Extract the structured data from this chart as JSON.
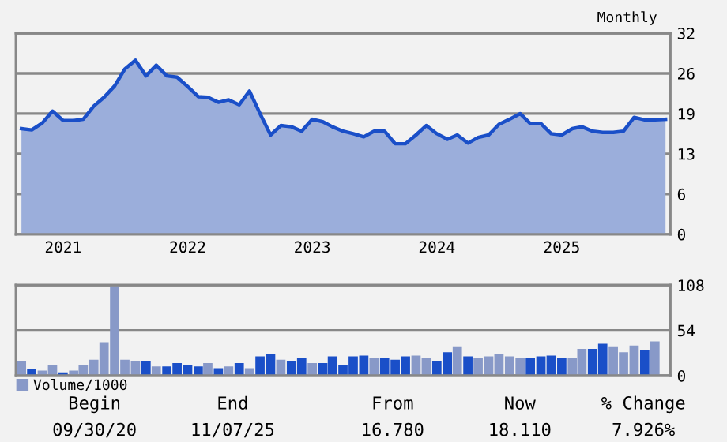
{
  "chart_data": [
    {
      "type": "area",
      "annotations": [
        "Monthly"
      ],
      "grid": "y",
      "legend": false,
      "x": [
        "2020-09",
        "2020-10",
        "2020-11",
        "2020-12",
        "2021-01",
        "2021-02",
        "2021-03",
        "2021-04",
        "2021-05",
        "2021-06",
        "2021-07",
        "2021-08",
        "2021-09",
        "2021-10",
        "2021-11",
        "2021-12",
        "2022-01",
        "2022-02",
        "2022-03",
        "2022-04",
        "2022-05",
        "2022-06",
        "2022-07",
        "2022-08",
        "2022-09",
        "2022-10",
        "2022-11",
        "2022-12",
        "2023-01",
        "2023-02",
        "2023-03",
        "2023-04",
        "2023-05",
        "2023-06",
        "2023-07",
        "2023-08",
        "2023-09",
        "2023-10",
        "2023-11",
        "2023-12",
        "2024-01",
        "2024-02",
        "2024-03",
        "2024-04",
        "2024-05",
        "2024-06",
        "2024-07",
        "2024-08",
        "2024-09",
        "2024-10",
        "2024-11",
        "2024-12",
        "2025-01",
        "2025-02",
        "2025-03",
        "2025-04",
        "2025-05",
        "2025-06",
        "2025-07",
        "2025-08",
        "2025-09",
        "2025-10",
        "2025-11"
      ],
      "series": [
        {
          "color": "#1a4fc8",
          "values": [
            16.8,
            16.6,
            17.7,
            19.6,
            18.1,
            18.1,
            18.3,
            20.4,
            21.8,
            23.6,
            26.3,
            27.7,
            25.2,
            26.9,
            25.2,
            25.0,
            23.5,
            21.9,
            21.8,
            21.0,
            21.4,
            20.6,
            22.8,
            19.2,
            15.8,
            17.3,
            17.1,
            16.4,
            18.3,
            17.9,
            17.1,
            16.4,
            16.0,
            15.5,
            16.4,
            16.4,
            14.4,
            14.4,
            15.8,
            17.3,
            16.0,
            15.1,
            15.8,
            14.5,
            15.4,
            15.8,
            17.5,
            18.3,
            19.2,
            17.6,
            17.6,
            16.0,
            15.8,
            16.8,
            17.1,
            16.4,
            16.2,
            16.2,
            16.4,
            18.6,
            18.2,
            18.2,
            18.3
          ]
        }
      ],
      "xlim": [
        "2020-08-16",
        "2025-11-15"
      ],
      "xticks": [
        "2021",
        "2022",
        "2023",
        "2024",
        "2025"
      ],
      "ylim": [
        0,
        32
      ],
      "yticks": [
        0,
        {
          "value": 6.4,
          "label": "6"
        },
        {
          "value": 12.8,
          "label": "13"
        },
        {
          "value": 19.2,
          "label": "19"
        },
        {
          "value": 25.6,
          "label": "26"
        },
        32
      ]
    },
    {
      "type": "bar",
      "grid": "y",
      "legend": "bottom left",
      "tick_labels": "y",
      "annotations": [
        "Begin",
        "09/30/20",
        "End",
        "11/07/25",
        "From",
        "16.780",
        "Now",
        "18.110",
        "% Change",
        "7.926%"
      ],
      "x": [
        "2020-09",
        "2020-10",
        "2020-11",
        "2020-12",
        "2021-01",
        "2021-02",
        "2021-03",
        "2021-04",
        "2021-05",
        "2021-06",
        "2021-07",
        "2021-08",
        "2021-09",
        "2021-10",
        "2021-11",
        "2021-12",
        "2022-01",
        "2022-02",
        "2022-03",
        "2022-04",
        "2022-05",
        "2022-06",
        "2022-07",
        "2022-08",
        "2022-09",
        "2022-10",
        "2022-11",
        "2022-12",
        "2023-01",
        "2023-02",
        "2023-03",
        "2023-04",
        "2023-05",
        "2023-06",
        "2023-07",
        "2023-08",
        "2023-09",
        "2023-10",
        "2023-11",
        "2023-12",
        "2024-01",
        "2024-02",
        "2024-03",
        "2024-04",
        "2024-05",
        "2024-06",
        "2024-07",
        "2024-08",
        "2024-09",
        "2024-10",
        "2024-11",
        "2024-12",
        "2025-01",
        "2025-02",
        "2025-03",
        "2025-04",
        "2025-05",
        "2025-06",
        "2025-07",
        "2025-08",
        "2025-09",
        "2025-10"
      ],
      "series": [
        {
          "name": "Volume/1000",
          "color": "#8899c8",
          "values": [
            17,
            8,
            6,
            13,
            4,
            6,
            13,
            19,
            40,
            107,
            19,
            17,
            17,
            11,
            11,
            15,
            13,
            11,
            15,
            9,
            11,
            15,
            9,
            23,
            26,
            19,
            17,
            21,
            15,
            15,
            23,
            13,
            23,
            24,
            21,
            21,
            19,
            23,
            24,
            21,
            17,
            28,
            34,
            23,
            21,
            23,
            26,
            23,
            21,
            21,
            23,
            24,
            21,
            21,
            32,
            32,
            38,
            34,
            28,
            36,
            30,
            41
          ],
          "colors": [
            "#8899c8",
            "#1a4fc8",
            "#8899c8",
            "#8899c8",
            "#1a4fc8",
            "#8899c8",
            "#8899c8",
            "#8899c8",
            "#8899c8",
            "#8899c8",
            "#8899c8",
            "#8899c8",
            "#1a4fc8",
            "#8899c8",
            "#1a4fc8",
            "#1a4fc8",
            "#1a4fc8",
            "#1a4fc8",
            "#8899c8",
            "#1a4fc8",
            "#8899c8",
            "#1a4fc8",
            "#8899c8",
            "#1a4fc8",
            "#1a4fc8",
            "#8899c8",
            "#1a4fc8",
            "#1a4fc8",
            "#8899c8",
            "#1a4fc8",
            "#1a4fc8",
            "#1a4fc8",
            "#1a4fc8",
            "#1a4fc8",
            "#8899c8",
            "#1a4fc8",
            "#1a4fc8",
            "#1a4fc8",
            "#8899c8",
            "#8899c8",
            "#1a4fc8",
            "#1a4fc8",
            "#8899c8",
            "#1a4fc8",
            "#8899c8",
            "#8899c8",
            "#8899c8",
            "#8899c8",
            "#8899c8",
            "#1a4fc8",
            "#1a4fc8",
            "#1a4fc8",
            "#1a4fc8",
            "#8899c8",
            "#8899c8",
            "#1a4fc8",
            "#1a4fc8",
            "#8899c8",
            "#8899c8",
            "#8899c8",
            "#1a4fc8",
            "#8899c8"
          ]
        }
      ],
      "xlim": [
        "2020-08-16",
        "2025-11-15"
      ],
      "ylim": [
        0,
        108
      ],
      "yticks": [
        0,
        54,
        108
      ]
    }
  ]
}
